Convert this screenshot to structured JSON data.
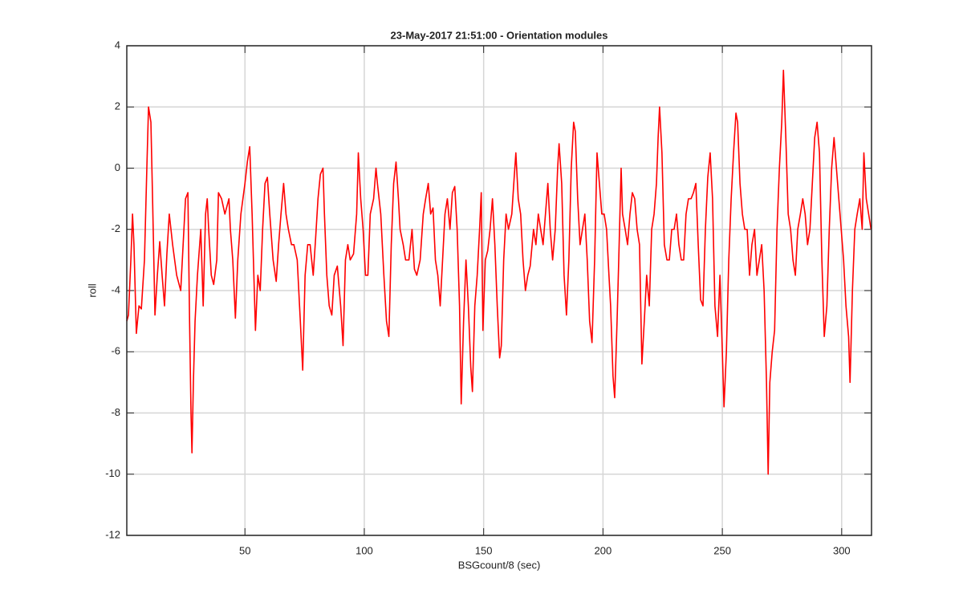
{
  "chart_data": {
    "type": "line",
    "title": "23-May-2017 21:51:00 - Orientation modules",
    "xlabel": "BSGcount/8 (sec)",
    "ylabel": "roll",
    "x": [
      0.5,
      1.2,
      2.2,
      2.9,
      3.5,
      4.5,
      5.6,
      6.6,
      7.9,
      8.9,
      9.6,
      10.6,
      11.3,
      12.3,
      13.3,
      14.3,
      15.3,
      16.3,
      17.3,
      18.3,
      19.7,
      21.4,
      23.1,
      24.1,
      25.1,
      26.1,
      26.8,
      27.4,
      27.8,
      28.4,
      29.1,
      30.1,
      31.5,
      32.5,
      33.5,
      34.2,
      34.8,
      35.9,
      36.9,
      38.2,
      38.9,
      40.2,
      41.6,
      43.3,
      43.9,
      44.9,
      46,
      47,
      48.3,
      50,
      51,
      52,
      53,
      54.4,
      55.4,
      56.4,
      57.4,
      58.4,
      59.4,
      60.4,
      61.8,
      63.1,
      64.1,
      65.1,
      66.2,
      67.2,
      68.2,
      69.5,
      70.5,
      71.9,
      73.2,
      74.2,
      75.2,
      76.3,
      77.3,
      78.6,
      79.6,
      80.6,
      81.6,
      82.7,
      83.3,
      84.3,
      85.3,
      86.4,
      87.4,
      88.7,
      90.1,
      91.1,
      92.1,
      93.1,
      94.1,
      95.5,
      96.8,
      97.5,
      98.5,
      99.5,
      100.5,
      101.5,
      102.5,
      103.9,
      104.9,
      105.5,
      106.9,
      108.2,
      109.3,
      110.3,
      111.3,
      112.3,
      113.3,
      114.3,
      115,
      116.3,
      117.3,
      118.7,
      120,
      121,
      122,
      123.4,
      124.7,
      125.7,
      126.8,
      127.8,
      128.8,
      129.8,
      130.8,
      131.8,
      132.8,
      133.8,
      134.8,
      135.9,
      136.9,
      137.9,
      138.9,
      139.9,
      140.6,
      141.6,
      142.6,
      143.6,
      144.6,
      145.3,
      146.3,
      147.3,
      148.3,
      149,
      149.7,
      150.7,
      151.7,
      152.7,
      153.7,
      154.7,
      155.7,
      156.7,
      157.4,
      158.4,
      159.4,
      160.4,
      161.8,
      162.8,
      163.5,
      164.5,
      165.5,
      166.5,
      167.5,
      168.5,
      169.5,
      170.9,
      171.9,
      172.9,
      173.9,
      174.9,
      175.9,
      176.9,
      177.9,
      178.9,
      180,
      181,
      181.6,
      182.7,
      183.7,
      184.7,
      185.7,
      186.7,
      187.7,
      188.4,
      189.4,
      190.4,
      191.4,
      192.4,
      193.4,
      194.4,
      195.4,
      196.5,
      197.5,
      198.5,
      199.5,
      200.5,
      201.5,
      202.5,
      203.2,
      204.2,
      204.9,
      205.9,
      206.6,
      207.6,
      208.2,
      209.3,
      210.3,
      211.3,
      212.3,
      213.3,
      214.3,
      215.3,
      216.3,
      217.3,
      218.3,
      219.4,
      220.4,
      221.4,
      222.4,
      223.1,
      223.7,
      224.7,
      225.7,
      226.8,
      227.8,
      228.8,
      229.8,
      230.8,
      231.8,
      232.8,
      233.8,
      234.8,
      235.8,
      236.9,
      237.9,
      238.9,
      239.9,
      240.9,
      241.9,
      242.9,
      243.9,
      244.9,
      245.9,
      246.9,
      248,
      249,
      250,
      250.7,
      251.7,
      252.7,
      253.7,
      254.7,
      255.7,
      256.4,
      257.4,
      258.4,
      259.4,
      260.4,
      261.4,
      262.4,
      263.5,
      264.5,
      265.5,
      266.5,
      267.5,
      268.5,
      269.2,
      269.9,
      270.9,
      271.9,
      272.9,
      273.9,
      274.9,
      275.6,
      276.6,
      277.6,
      278.6,
      279.6,
      280.6,
      281.6,
      282.7,
      283.7,
      284.7,
      285.7,
      286.7,
      287.7,
      288.7,
      289.7,
      290.7,
      291.7,
      292.7,
      293.8,
      294.8,
      295.8,
      296.8,
      297.8,
      298.8,
      299.8,
      300.8,
      301.8,
      302.9,
      303.5,
      304.5,
      305.5,
      306.5,
      307.6,
      308.6,
      309.3,
      310.3,
      311.3,
      312.3
    ],
    "values": [
      -5,
      -4.8,
      -3,
      -1.5,
      -2.5,
      -5.4,
      -4.5,
      -4.6,
      -3,
      0,
      2,
      1.5,
      -1,
      -4.8,
      -3.5,
      -2.4,
      -3.5,
      -4.5,
      -2.8,
      -1.5,
      -2.5,
      -3.5,
      -4,
      -2.5,
      -1,
      -0.8,
      -5,
      -8,
      -9.3,
      -7,
      -5,
      -3.5,
      -2,
      -4.5,
      -1.5,
      -1,
      -2,
      -3.5,
      -3.8,
      -3,
      -0.8,
      -1,
      -1.5,
      -1,
      -2,
      -3,
      -4.9,
      -3,
      -1.5,
      -0.5,
      0.2,
      0.7,
      -1.5,
      -5.3,
      -3.5,
      -4,
      -2,
      -0.5,
      -0.3,
      -1.5,
      -3,
      -3.7,
      -2.5,
      -1.5,
      -0.5,
      -1.5,
      -2,
      -2.5,
      -2.5,
      -3,
      -5,
      -6.6,
      -3.5,
      -2.5,
      -2.5,
      -3.5,
      -2.3,
      -1,
      -0.2,
      0,
      -1.5,
      -3.5,
      -4.5,
      -4.8,
      -3.5,
      -3.2,
      -4.5,
      -5.8,
      -3,
      -2.5,
      -3,
      -2.8,
      -1.5,
      0.5,
      -1,
      -2,
      -3.5,
      -3.5,
      -1.5,
      -1,
      0,
      -0.5,
      -1.5,
      -3.5,
      -5,
      -5.5,
      -2.5,
      -0.5,
      0.2,
      -1,
      -2,
      -2.5,
      -3,
      -3,
      -2,
      -3.3,
      -3.5,
      -3,
      -1.5,
      -1,
      -0.5,
      -1.5,
      -1.3,
      -3,
      -3.5,
      -4.5,
      -3,
      -1.5,
      -1,
      -2,
      -0.8,
      -0.6,
      -2,
      -4.5,
      -7.7,
      -5,
      -3,
      -4.5,
      -6.5,
      -7.3,
      -4.5,
      -3.5,
      -2,
      -0.8,
      -5.3,
      -3,
      -2.7,
      -2,
      -1,
      -2.5,
      -4.5,
      -6.2,
      -5.8,
      -3,
      -1.5,
      -2,
      -1.5,
      -0.3,
      0.5,
      -1,
      -1.5,
      -3,
      -4,
      -3.5,
      -3.2,
      -2,
      -2.5,
      -1.5,
      -2,
      -2.5,
      -1.5,
      -0.5,
      -2,
      -3,
      -2,
      0,
      0.8,
      -0.5,
      -3.5,
      -4.8,
      -3,
      0,
      1.5,
      1.2,
      -1,
      -2.5,
      -2,
      -1.5,
      -3,
      -5,
      -5.7,
      -3,
      0.5,
      -0.5,
      -1.5,
      -1.5,
      -2,
      -3.5,
      -4.5,
      -6.8,
      -7.5,
      -5,
      -3,
      0,
      -1.5,
      -2,
      -2.5,
      -1.5,
      -0.8,
      -1,
      -2,
      -2.5,
      -6.4,
      -5,
      -3.5,
      -4.5,
      -2,
      -1.5,
      -0.5,
      1,
      2,
      0.5,
      -2.5,
      -3,
      -3,
      -2,
      -2,
      -1.5,
      -2.5,
      -3,
      -3,
      -1.5,
      -1,
      -1,
      -0.8,
      -0.5,
      -2.5,
      -4.3,
      -4.5,
      -2,
      -0.3,
      0.5,
      -1,
      -4.5,
      -5.5,
      -3.5,
      -6,
      -7.8,
      -6,
      -3,
      -1,
      0.5,
      1.8,
      1.5,
      -0.5,
      -1.5,
      -2,
      -2,
      -3.5,
      -2.5,
      -2,
      -3.5,
      -3,
      -2.5,
      -4,
      -7,
      -10,
      -7,
      -6,
      -5.3,
      -2,
      0,
      1.5,
      3.2,
      1,
      -1.5,
      -2,
      -3,
      -3.5,
      -2,
      -1.5,
      -1,
      -1.5,
      -2.5,
      -2,
      -0.5,
      1,
      1.5,
      0.5,
      -3,
      -5.5,
      -4.5,
      -2,
      0,
      1,
      0,
      -1,
      -2,
      -3,
      -4.5,
      -5.5,
      -7,
      -4,
      -2,
      -1.5,
      -1,
      -2,
      0.5,
      -1,
      -1.5,
      -2
    ],
    "color": "#ff0000",
    "xlim": [
      0.5,
      312.5
    ],
    "ylim": [
      -12,
      4
    ],
    "xticks": [
      50,
      100,
      150,
      200,
      250,
      300
    ],
    "yticks": [
      -12,
      -10,
      -8,
      -6,
      -4,
      -2,
      0,
      2,
      4
    ],
    "grid": true
  }
}
